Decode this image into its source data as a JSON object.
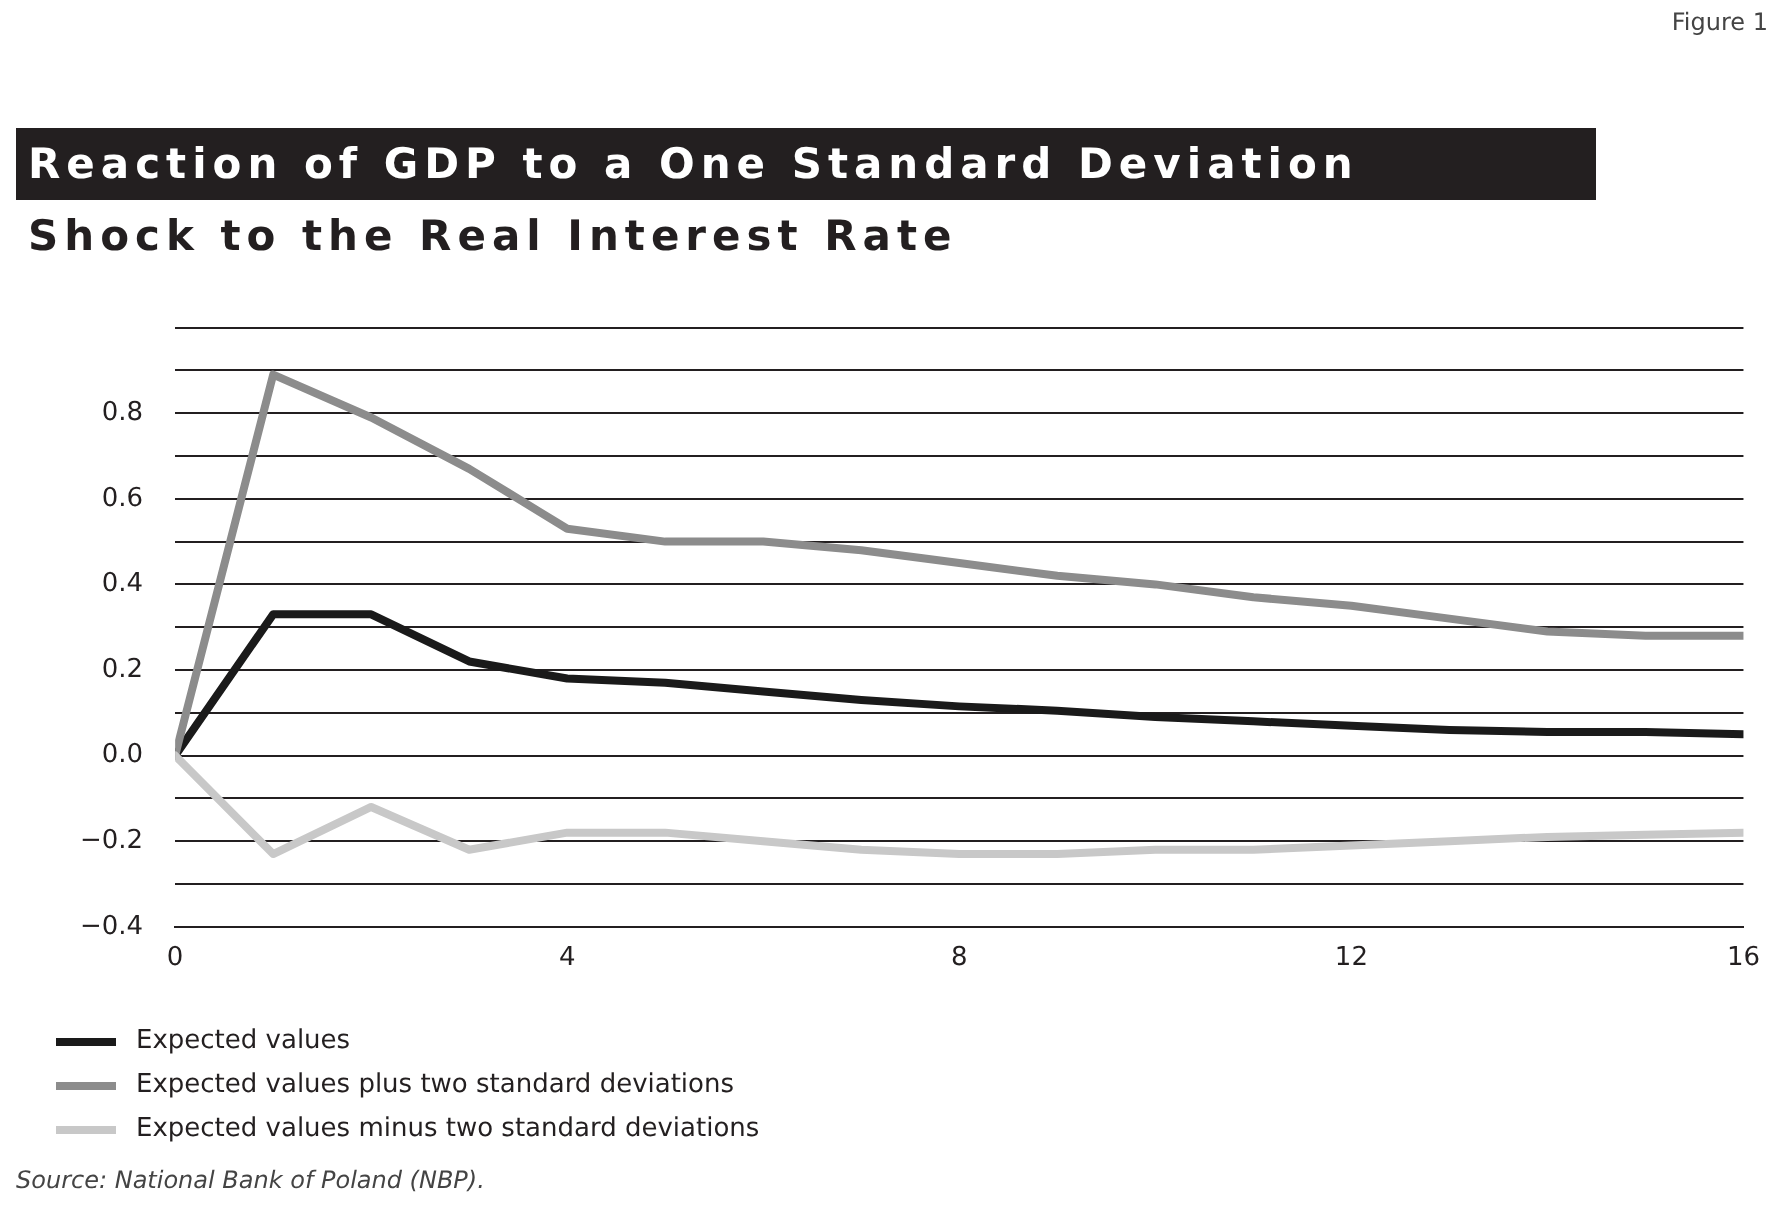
{
  "chart_data": {
    "type": "line",
    "title": "Reaction of GDP to a One Standard Deviation Shock to the Real Interest Rate",
    "x": [
      0,
      1,
      2,
      3,
      4,
      5,
      6,
      7,
      8,
      9,
      10,
      11,
      12,
      13,
      14,
      15,
      16
    ],
    "xlim": [
      0,
      16
    ],
    "xticks": [
      0,
      4,
      8,
      12,
      16
    ],
    "ylim": [
      -0.4,
      1.0
    ],
    "yticks": [
      {
        "value": -0.4,
        "label": "−0.4"
      },
      {
        "value": -0.3,
        "label": null
      },
      {
        "value": -0.2,
        "label": "−0.2"
      },
      {
        "value": -0.1,
        "label": null
      },
      {
        "value": 0,
        "label": "0.0"
      },
      {
        "value": 0.1,
        "label": null
      },
      {
        "value": 0.2,
        "label": "0.2"
      },
      {
        "value": 0.3,
        "label": null
      },
      {
        "value": 0.4,
        "label": "0.4"
      },
      {
        "value": 0.5,
        "label": null
      },
      {
        "value": 0.6,
        "label": "0.6"
      },
      {
        "value": 0.7,
        "label": null
      },
      {
        "value": 0.8,
        "label": "0.8"
      },
      {
        "value": 0.9,
        "label": null
      },
      {
        "value": 1.0,
        "label": null
      }
    ],
    "grid": "y",
    "legend": "bottom left",
    "marker": "none",
    "line_style": "solid",
    "series": [
      {
        "name": "Expected values",
        "color": "#1a1a1a",
        "values": [
          0,
          0.33,
          0.33,
          0.22,
          0.18,
          0.17,
          0.15,
          0.13,
          0.115,
          0.105,
          0.09,
          0.08,
          0.07,
          0.06,
          0.055,
          0.055,
          0.05
        ]
      },
      {
        "name": "Expected values plus two standard deviations",
        "color": "#8c8c8c",
        "values": [
          0,
          0.89,
          0.79,
          0.67,
          0.53,
          0.5,
          0.5,
          0.48,
          0.45,
          0.42,
          0.4,
          0.37,
          0.35,
          0.32,
          0.29,
          0.28,
          0.28
        ]
      },
      {
        "name": "Expected values minus two standard deviations",
        "color": "#c8c8c8",
        "values": [
          0,
          -0.23,
          -0.12,
          -0.22,
          -0.18,
          -0.18,
          -0.2,
          -0.22,
          -0.23,
          -0.23,
          -0.22,
          -0.22,
          -0.21,
          -0.2,
          -0.19,
          -0.185,
          -0.18
        ]
      }
    ],
    "annotations": [
      "Figure 1",
      "Source: National Bank of Poland (NBP)."
    ]
  }
}
